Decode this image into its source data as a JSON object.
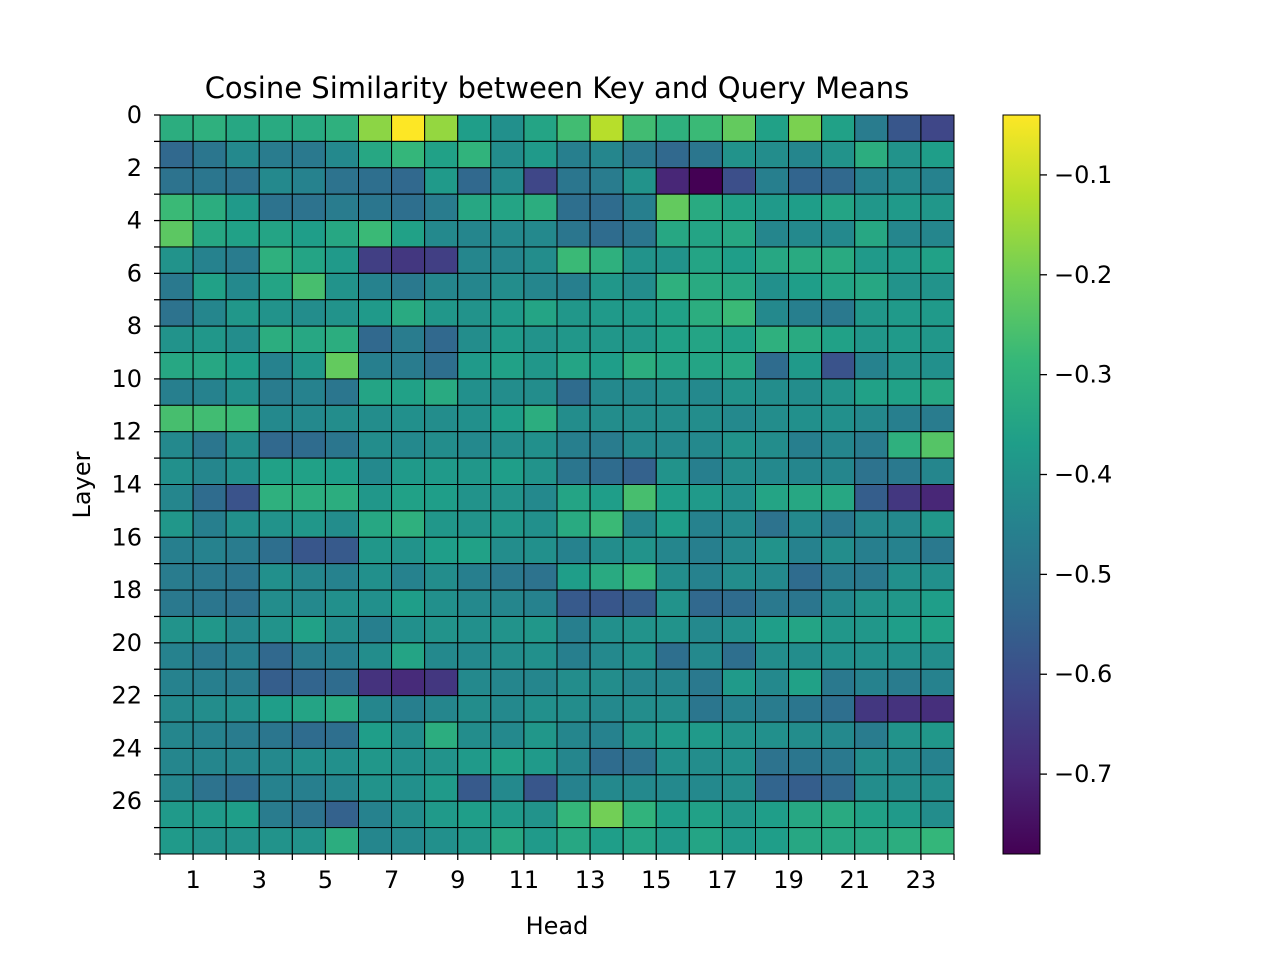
{
  "chart_data": {
    "type": "heatmap",
    "title": "Cosine Similarity between Key and Query Means",
    "xlabel": "Head",
    "ylabel": "Layer",
    "n_cols": 24,
    "n_rows": 28,
    "x_tick_labels": [
      "1",
      "3",
      "5",
      "7",
      "9",
      "11",
      "13",
      "15",
      "17",
      "19",
      "21",
      "23"
    ],
    "y_tick_labels": [
      "0",
      "2",
      "4",
      "6",
      "8",
      "10",
      "12",
      "14",
      "16",
      "18",
      "20",
      "22",
      "24",
      "26"
    ],
    "colorbar": {
      "min": -0.78,
      "max": -0.04,
      "tick_labels": [
        "−0.1",
        "−0.2",
        "−0.3",
        "−0.4",
        "−0.5",
        "−0.6",
        "−0.7"
      ],
      "tick_values": [
        -0.1,
        -0.2,
        -0.3,
        -0.4,
        -0.5,
        -0.6,
        -0.7
      ]
    },
    "colormap": "viridis",
    "values": [
      [
        -0.32,
        -0.31,
        -0.34,
        -0.33,
        -0.33,
        -0.31,
        -0.17,
        -0.04,
        -0.16,
        -0.37,
        -0.41,
        -0.35,
        -0.27,
        -0.12,
        -0.27,
        -0.31,
        -0.28,
        -0.22,
        -0.36,
        -0.19,
        -0.36,
        -0.47,
        -0.58,
        -0.62
      ],
      [
        -0.53,
        -0.49,
        -0.43,
        -0.47,
        -0.48,
        -0.43,
        -0.34,
        -0.29,
        -0.36,
        -0.3,
        -0.42,
        -0.38,
        -0.46,
        -0.44,
        -0.48,
        -0.53,
        -0.49,
        -0.4,
        -0.42,
        -0.44,
        -0.4,
        -0.32,
        -0.4,
        -0.37
      ],
      [
        -0.5,
        -0.49,
        -0.5,
        -0.43,
        -0.45,
        -0.5,
        -0.51,
        -0.53,
        -0.38,
        -0.53,
        -0.43,
        -0.62,
        -0.49,
        -0.47,
        -0.4,
        -0.7,
        -0.78,
        -0.6,
        -0.46,
        -0.54,
        -0.53,
        -0.45,
        -0.43,
        -0.45
      ],
      [
        -0.28,
        -0.32,
        -0.38,
        -0.5,
        -0.5,
        -0.47,
        -0.49,
        -0.51,
        -0.47,
        -0.34,
        -0.35,
        -0.32,
        -0.51,
        -0.52,
        -0.46,
        -0.22,
        -0.33,
        -0.36,
        -0.38,
        -0.37,
        -0.35,
        -0.39,
        -0.38,
        -0.39
      ],
      [
        -0.23,
        -0.34,
        -0.36,
        -0.35,
        -0.37,
        -0.34,
        -0.28,
        -0.36,
        -0.43,
        -0.44,
        -0.43,
        -0.43,
        -0.49,
        -0.52,
        -0.49,
        -0.34,
        -0.35,
        -0.34,
        -0.44,
        -0.43,
        -0.43,
        -0.34,
        -0.44,
        -0.44
      ],
      [
        -0.4,
        -0.45,
        -0.47,
        -0.31,
        -0.35,
        -0.38,
        -0.64,
        -0.66,
        -0.64,
        -0.44,
        -0.44,
        -0.42,
        -0.28,
        -0.31,
        -0.4,
        -0.4,
        -0.35,
        -0.37,
        -0.34,
        -0.33,
        -0.33,
        -0.38,
        -0.38,
        -0.36
      ],
      [
        -0.48,
        -0.36,
        -0.43,
        -0.35,
        -0.26,
        -0.4,
        -0.45,
        -0.48,
        -0.44,
        -0.44,
        -0.42,
        -0.44,
        -0.46,
        -0.39,
        -0.42,
        -0.31,
        -0.33,
        -0.34,
        -0.41,
        -0.37,
        -0.35,
        -0.34,
        -0.4,
        -0.4
      ],
      [
        -0.5,
        -0.44,
        -0.39,
        -0.4,
        -0.42,
        -0.4,
        -0.38,
        -0.33,
        -0.39,
        -0.4,
        -0.38,
        -0.35,
        -0.39,
        -0.38,
        -0.38,
        -0.36,
        -0.32,
        -0.28,
        -0.43,
        -0.46,
        -0.48,
        -0.39,
        -0.38,
        -0.38
      ],
      [
        -0.4,
        -0.39,
        -0.42,
        -0.32,
        -0.34,
        -0.32,
        -0.53,
        -0.47,
        -0.53,
        -0.42,
        -0.38,
        -0.4,
        -0.39,
        -0.39,
        -0.39,
        -0.36,
        -0.35,
        -0.36,
        -0.31,
        -0.33,
        -0.36,
        -0.39,
        -0.38,
        -0.39
      ],
      [
        -0.34,
        -0.34,
        -0.37,
        -0.45,
        -0.39,
        -0.22,
        -0.46,
        -0.47,
        -0.51,
        -0.38,
        -0.36,
        -0.39,
        -0.35,
        -0.37,
        -0.32,
        -0.35,
        -0.35,
        -0.34,
        -0.52,
        -0.38,
        -0.59,
        -0.45,
        -0.4,
        -0.41
      ],
      [
        -0.46,
        -0.45,
        -0.41,
        -0.47,
        -0.45,
        -0.49,
        -0.35,
        -0.36,
        -0.33,
        -0.41,
        -0.42,
        -0.42,
        -0.52,
        -0.43,
        -0.43,
        -0.42,
        -0.43,
        -0.4,
        -0.42,
        -0.42,
        -0.4,
        -0.36,
        -0.36,
        -0.34
      ],
      [
        -0.26,
        -0.27,
        -0.28,
        -0.43,
        -0.43,
        -0.42,
        -0.42,
        -0.41,
        -0.42,
        -0.41,
        -0.37,
        -0.32,
        -0.42,
        -0.42,
        -0.42,
        -0.42,
        -0.42,
        -0.43,
        -0.42,
        -0.41,
        -0.41,
        -0.43,
        -0.46,
        -0.47
      ],
      [
        -0.43,
        -0.49,
        -0.42,
        -0.53,
        -0.52,
        -0.49,
        -0.42,
        -0.43,
        -0.42,
        -0.43,
        -0.42,
        -0.41,
        -0.46,
        -0.47,
        -0.43,
        -0.43,
        -0.43,
        -0.4,
        -0.42,
        -0.46,
        -0.44,
        -0.47,
        -0.31,
        -0.24
      ],
      [
        -0.41,
        -0.44,
        -0.41,
        -0.36,
        -0.36,
        -0.37,
        -0.43,
        -0.38,
        -0.38,
        -0.39,
        -0.37,
        -0.4,
        -0.49,
        -0.52,
        -0.55,
        -0.4,
        -0.46,
        -0.42,
        -0.43,
        -0.44,
        -0.44,
        -0.5,
        -0.48,
        -0.44
      ],
      [
        -0.44,
        -0.52,
        -0.59,
        -0.31,
        -0.32,
        -0.32,
        -0.39,
        -0.36,
        -0.37,
        -0.4,
        -0.4,
        -0.43,
        -0.35,
        -0.37,
        -0.26,
        -0.37,
        -0.38,
        -0.41,
        -0.35,
        -0.34,
        -0.34,
        -0.56,
        -0.66,
        -0.7
      ],
      [
        -0.39,
        -0.46,
        -0.41,
        -0.4,
        -0.39,
        -0.42,
        -0.34,
        -0.31,
        -0.39,
        -0.4,
        -0.39,
        -0.41,
        -0.33,
        -0.28,
        -0.44,
        -0.37,
        -0.45,
        -0.43,
        -0.5,
        -0.43,
        -0.48,
        -0.43,
        -0.43,
        -0.39
      ],
      [
        -0.46,
        -0.45,
        -0.47,
        -0.51,
        -0.58,
        -0.57,
        -0.39,
        -0.4,
        -0.37,
        -0.36,
        -0.42,
        -0.41,
        -0.45,
        -0.42,
        -0.4,
        -0.44,
        -0.46,
        -0.43,
        -0.4,
        -0.45,
        -0.42,
        -0.46,
        -0.45,
        -0.48
      ],
      [
        -0.47,
        -0.48,
        -0.49,
        -0.41,
        -0.44,
        -0.45,
        -0.41,
        -0.45,
        -0.42,
        -0.46,
        -0.48,
        -0.5,
        -0.37,
        -0.33,
        -0.29,
        -0.42,
        -0.45,
        -0.42,
        -0.43,
        -0.52,
        -0.47,
        -0.48,
        -0.41,
        -0.41
      ],
      [
        -0.48,
        -0.49,
        -0.5,
        -0.42,
        -0.43,
        -0.41,
        -0.41,
        -0.37,
        -0.41,
        -0.43,
        -0.44,
        -0.45,
        -0.57,
        -0.58,
        -0.56,
        -0.4,
        -0.53,
        -0.52,
        -0.48,
        -0.49,
        -0.43,
        -0.4,
        -0.39,
        -0.37
      ],
      [
        -0.4,
        -0.39,
        -0.43,
        -0.4,
        -0.36,
        -0.42,
        -0.46,
        -0.41,
        -0.4,
        -0.41,
        -0.4,
        -0.39,
        -0.46,
        -0.41,
        -0.4,
        -0.4,
        -0.43,
        -0.41,
        -0.37,
        -0.35,
        -0.39,
        -0.39,
        -0.37,
        -0.36
      ],
      [
        -0.45,
        -0.48,
        -0.46,
        -0.53,
        -0.47,
        -0.46,
        -0.42,
        -0.35,
        -0.43,
        -0.43,
        -0.42,
        -0.41,
        -0.46,
        -0.43,
        -0.41,
        -0.51,
        -0.43,
        -0.51,
        -0.42,
        -0.42,
        -0.41,
        -0.41,
        -0.41,
        -0.42
      ],
      [
        -0.45,
        -0.46,
        -0.47,
        -0.56,
        -0.54,
        -0.52,
        -0.67,
        -0.69,
        -0.66,
        -0.43,
        -0.44,
        -0.44,
        -0.42,
        -0.42,
        -0.44,
        -0.44,
        -0.48,
        -0.38,
        -0.43,
        -0.36,
        -0.48,
        -0.45,
        -0.47,
        -0.45
      ],
      [
        -0.43,
        -0.42,
        -0.41,
        -0.37,
        -0.35,
        -0.33,
        -0.44,
        -0.46,
        -0.44,
        -0.42,
        -0.43,
        -0.41,
        -0.42,
        -0.43,
        -0.42,
        -0.42,
        -0.49,
        -0.45,
        -0.47,
        -0.49,
        -0.51,
        -0.66,
        -0.67,
        -0.68
      ],
      [
        -0.44,
        -0.45,
        -0.47,
        -0.49,
        -0.52,
        -0.51,
        -0.37,
        -0.42,
        -0.32,
        -0.42,
        -0.43,
        -0.39,
        -0.44,
        -0.45,
        -0.4,
        -0.38,
        -0.38,
        -0.4,
        -0.41,
        -0.42,
        -0.43,
        -0.47,
        -0.4,
        -0.39
      ],
      [
        -0.44,
        -0.44,
        -0.44,
        -0.43,
        -0.41,
        -0.41,
        -0.39,
        -0.41,
        -0.4,
        -0.38,
        -0.36,
        -0.38,
        -0.44,
        -0.52,
        -0.5,
        -0.41,
        -0.42,
        -0.41,
        -0.5,
        -0.49,
        -0.48,
        -0.42,
        -0.43,
        -0.45
      ],
      [
        -0.44,
        -0.5,
        -0.52,
        -0.45,
        -0.46,
        -0.44,
        -0.4,
        -0.41,
        -0.38,
        -0.57,
        -0.43,
        -0.58,
        -0.45,
        -0.43,
        -0.43,
        -0.43,
        -0.43,
        -0.42,
        -0.54,
        -0.56,
        -0.53,
        -0.42,
        -0.42,
        -0.42
      ],
      [
        -0.38,
        -0.38,
        -0.37,
        -0.47,
        -0.5,
        -0.55,
        -0.45,
        -0.42,
        -0.38,
        -0.37,
        -0.38,
        -0.4,
        -0.29,
        -0.2,
        -0.3,
        -0.37,
        -0.36,
        -0.39,
        -0.37,
        -0.34,
        -0.33,
        -0.36,
        -0.38,
        -0.42
      ],
      [
        -0.38,
        -0.4,
        -0.4,
        -0.4,
        -0.4,
        -0.32,
        -0.44,
        -0.43,
        -0.41,
        -0.39,
        -0.34,
        -0.38,
        -0.34,
        -0.37,
        -0.35,
        -0.38,
        -0.35,
        -0.38,
        -0.37,
        -0.34,
        -0.34,
        -0.34,
        -0.32,
        -0.29
      ]
    ]
  }
}
